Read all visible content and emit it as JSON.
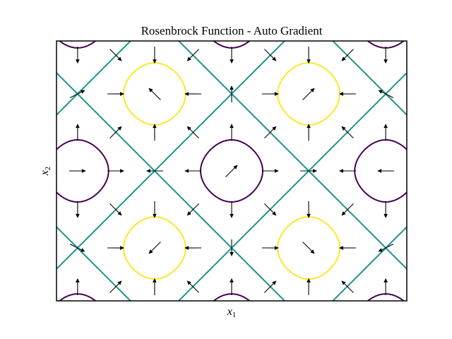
{
  "chart_data": {
    "type": "contour",
    "title": "Rosenbrock Function - Auto Gradient",
    "xlabel_base": "x",
    "xlabel_sub": "1",
    "ylabel_base": "x",
    "ylabel_sub": "2",
    "xlim": [
      -3.57,
      3.57
    ],
    "ylim": [
      -2.65,
      2.65
    ],
    "ticks_visible": false,
    "field": "sin(x1)^2 + sin(x2)^2",
    "contour_levels": [
      {
        "level": 0.35,
        "color": "#440154"
      },
      {
        "level": 1.0,
        "color": "#21918c"
      },
      {
        "level": 1.65,
        "color": "#fde725"
      }
    ],
    "quiver": {
      "x_grid": [
        -3.14,
        -2.36,
        -1.57,
        -0.79,
        0.0,
        0.79,
        1.57,
        2.36,
        3.14
      ],
      "y_grid": [
        -2.36,
        -1.57,
        -0.79,
        0.0,
        0.79,
        1.57,
        2.36
      ],
      "color": "#000000"
    }
  }
}
